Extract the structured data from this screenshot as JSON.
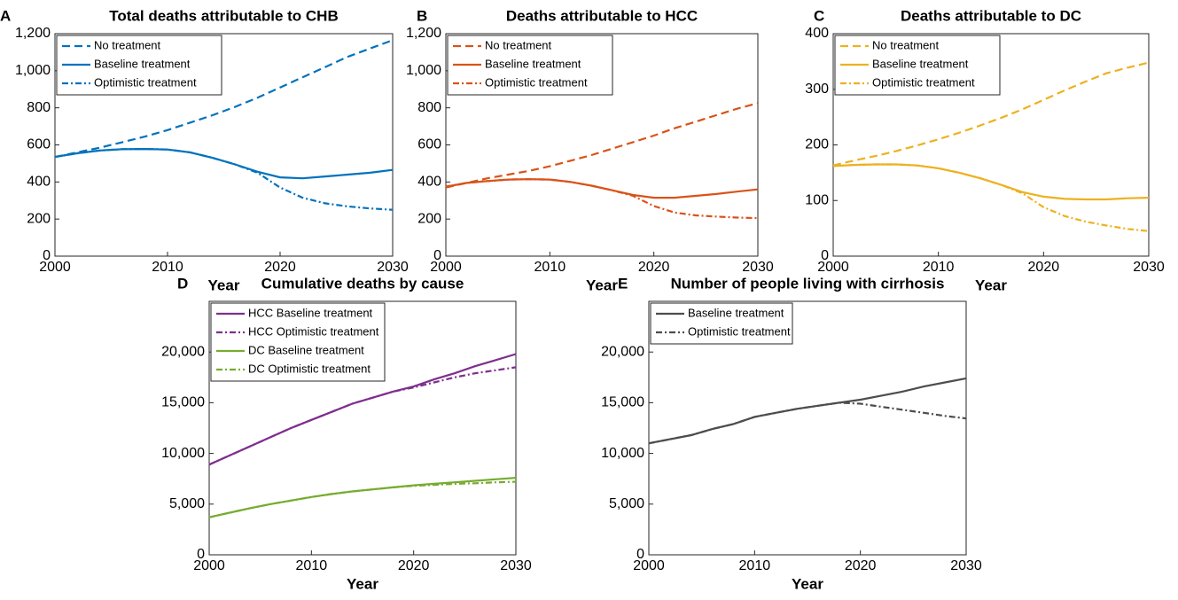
{
  "chart_data": [
    {
      "type": "line",
      "panel_label": "A",
      "title": "Total deaths attributable to CHB",
      "x_label": "Year",
      "x": [
        2000,
        2002,
        2004,
        2006,
        2008,
        2010,
        2012,
        2014,
        2016,
        2018,
        2020,
        2022,
        2024,
        2026,
        2028,
        2030
      ],
      "xlim": [
        2000,
        2030
      ],
      "xticks": [
        2000,
        2010,
        2020,
        2030
      ],
      "ylim": [
        0,
        1200
      ],
      "yticks": [
        0,
        200,
        400,
        600,
        800,
        {
          "value": 1000,
          "label": "1,000"
        },
        {
          "value": 1200,
          "label": "1,200"
        }
      ],
      "legend_position": "northwest",
      "series": [
        {
          "name": "No treatment",
          "color": "#0072bd",
          "linestyle": "dashed",
          "values": [
            535,
            560,
            585,
            615,
            645,
            680,
            720,
            760,
            805,
            855,
            910,
            965,
            1020,
            1075,
            1120,
            1165
          ]
        },
        {
          "name": "Baseline treatment",
          "color": "#0072bd",
          "linestyle": "solid",
          "values": [
            535,
            555,
            570,
            577,
            578,
            575,
            560,
            530,
            495,
            455,
            425,
            420,
            430,
            440,
            450,
            465
          ]
        },
        {
          "name": "Optimistic treatment",
          "color": "#0072bd",
          "linestyle": "dashdot",
          "values": [
            535,
            555,
            570,
            577,
            578,
            575,
            560,
            530,
            495,
            450,
            370,
            315,
            285,
            268,
            257,
            250
          ]
        }
      ]
    },
    {
      "type": "line",
      "panel_label": "B",
      "title": "Deaths attributable to HCC",
      "x_label": "Year",
      "x": [
        2000,
        2002,
        2004,
        2006,
        2008,
        2010,
        2012,
        2014,
        2016,
        2018,
        2020,
        2022,
        2024,
        2026,
        2028,
        2030
      ],
      "xlim": [
        2000,
        2030
      ],
      "xticks": [
        2000,
        2010,
        2020,
        2030
      ],
      "ylim": [
        0,
        1200
      ],
      "yticks": [
        0,
        200,
        400,
        600,
        800,
        {
          "value": 1000,
          "label": "1,000"
        },
        {
          "value": 1200,
          "label": "1,200"
        }
      ],
      "legend_position": "northwest",
      "series": [
        {
          "name": "No treatment",
          "color": "#d95319",
          "linestyle": "dashed",
          "values": [
            370,
            395,
            420,
            440,
            460,
            485,
            515,
            545,
            580,
            615,
            650,
            690,
            725,
            760,
            795,
            825
          ]
        },
        {
          "name": "Baseline treatment",
          "color": "#d95319",
          "linestyle": "solid",
          "values": [
            375,
            395,
            405,
            413,
            415,
            413,
            400,
            380,
            355,
            330,
            315,
            315,
            325,
            335,
            348,
            360
          ]
        },
        {
          "name": "Optimistic treatment",
          "color": "#d95319",
          "linestyle": "dashdot",
          "values": [
            375,
            395,
            405,
            413,
            415,
            413,
            400,
            380,
            355,
            325,
            270,
            235,
            220,
            213,
            208,
            205
          ]
        }
      ]
    },
    {
      "type": "line",
      "panel_label": "C",
      "title": "Deaths attributable to DC",
      "x_label": "Year",
      "x": [
        2000,
        2002,
        2004,
        2006,
        2008,
        2010,
        2012,
        2014,
        2016,
        2018,
        2020,
        2022,
        2024,
        2026,
        2028,
        2030
      ],
      "xlim": [
        2000,
        2030
      ],
      "xticks": [
        2000,
        2010,
        2020,
        2030
      ],
      "ylim": [
        0,
        400
      ],
      "yticks": [
        0,
        100,
        200,
        300,
        400
      ],
      "legend_position": "northwest",
      "series": [
        {
          "name": "No treatment",
          "color": "#edb120",
          "linestyle": "dashed",
          "values": [
            163,
            172,
            180,
            189,
            199,
            210,
            222,
            235,
            249,
            264,
            281,
            298,
            314,
            329,
            339,
            348
          ]
        },
        {
          "name": "Baseline treatment",
          "color": "#edb120",
          "linestyle": "solid",
          "values": [
            162,
            164,
            165,
            165,
            163,
            158,
            150,
            140,
            128,
            115,
            107,
            103,
            102,
            102,
            104,
            105
          ]
        },
        {
          "name": "Optimistic treatment",
          "color": "#edb120",
          "linestyle": "dashdot",
          "values": [
            162,
            164,
            165,
            165,
            163,
            158,
            150,
            140,
            128,
            113,
            88,
            72,
            62,
            55,
            49,
            45
          ]
        }
      ]
    },
    {
      "type": "line",
      "panel_label": "D",
      "title": "Cumulative deaths by cause",
      "x_label": "Year",
      "x": [
        2000,
        2002,
        2004,
        2006,
        2008,
        2010,
        2012,
        2014,
        2016,
        2018,
        2020,
        2022,
        2024,
        2026,
        2028,
        2030
      ],
      "xlim": [
        2000,
        2030
      ],
      "xticks": [
        2000,
        2010,
        2020,
        2030
      ],
      "ylim": [
        0,
        25000
      ],
      "yticks": [
        0,
        {
          "value": 5000,
          "label": "5,000"
        },
        {
          "value": 10000,
          "label": "10,000"
        },
        {
          "value": 15000,
          "label": "15,000"
        },
        {
          "value": 20000,
          "label": "20,000"
        }
      ],
      "legend_position": "northwest",
      "series": [
        {
          "name": "HCC Baseline treatment",
          "color": "#7e2f8e",
          "linestyle": "solid",
          "values": [
            8900,
            9800,
            10700,
            11600,
            12500,
            13300,
            14100,
            14900,
            15500,
            16100,
            16600,
            17300,
            17900,
            18600,
            19200,
            19800
          ]
        },
        {
          "name": "HCC Optimistic treatment",
          "color": "#7e2f8e",
          "linestyle": "dashdot",
          "values": [
            8900,
            9800,
            10700,
            11600,
            12500,
            13300,
            14100,
            14900,
            15500,
            16100,
            16500,
            17000,
            17500,
            17900,
            18200,
            18500
          ]
        },
        {
          "name": "DC Baseline treatment",
          "color": "#77ac30",
          "linestyle": "solid",
          "values": [
            3700,
            4150,
            4600,
            5000,
            5350,
            5700,
            6000,
            6250,
            6450,
            6650,
            6850,
            7000,
            7150,
            7300,
            7450,
            7600
          ]
        },
        {
          "name": "DC Optimistic treatment",
          "color": "#77ac30",
          "linestyle": "dashdot",
          "values": [
            3700,
            4150,
            4600,
            5000,
            5350,
            5700,
            6000,
            6250,
            6450,
            6650,
            6800,
            6900,
            7000,
            7050,
            7150,
            7200
          ]
        }
      ]
    },
    {
      "type": "line",
      "panel_label": "E",
      "title": "Number of people living with cirrhosis",
      "x_label": "Year",
      "x": [
        2000,
        2002,
        2004,
        2006,
        2008,
        2010,
        2012,
        2014,
        2016,
        2018,
        2020,
        2022,
        2024,
        2026,
        2028,
        2030
      ],
      "xlim": [
        2000,
        2030
      ],
      "xticks": [
        2000,
        2010,
        2020,
        2030
      ],
      "ylim": [
        0,
        25000
      ],
      "yticks": [
        0,
        {
          "value": 5000,
          "label": "5,000"
        },
        {
          "value": 10000,
          "label": "10,000"
        },
        {
          "value": 15000,
          "label": "15,000"
        },
        {
          "value": 20000,
          "label": "20,000"
        }
      ],
      "legend_position": "northwest",
      "series": [
        {
          "name": "Baseline treatment",
          "color": "#4d4d4d",
          "linestyle": "solid",
          "values": [
            11000,
            11400,
            11800,
            12400,
            12900,
            13600,
            14000,
            14400,
            14700,
            15000,
            15300,
            15700,
            16100,
            16600,
            17000,
            17400
          ]
        },
        {
          "name": "Optimistic treatment",
          "color": "#4d4d4d",
          "linestyle": "dashdot",
          "values": [
            11000,
            11400,
            11800,
            12400,
            12900,
            13600,
            14000,
            14400,
            14700,
            15000,
            14900,
            14600,
            14300,
            14000,
            13700,
            13450
          ]
        }
      ]
    }
  ]
}
